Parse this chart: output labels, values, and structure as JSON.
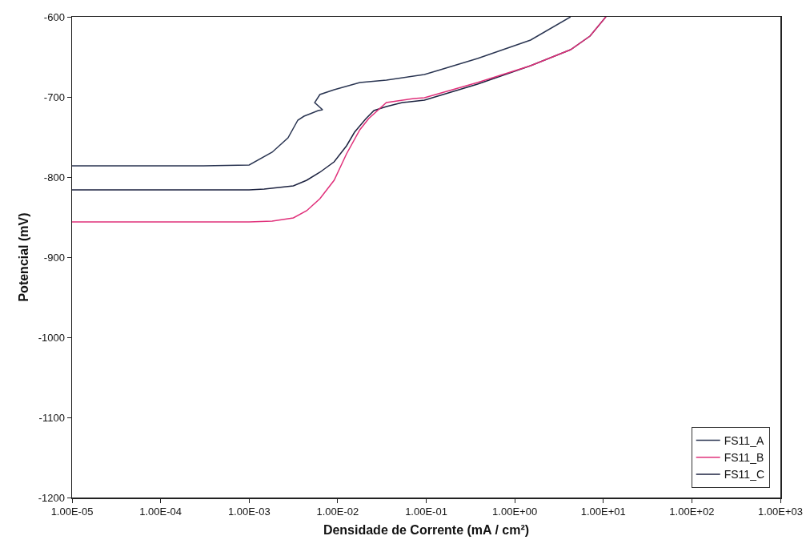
{
  "chart_data": {
    "type": "line",
    "xlabel": "Densidade de Corrente (mA / cm²)",
    "ylabel": "Potencial (mV)",
    "log": "x",
    "grid": false,
    "legend": "bottom right",
    "line_style": "solid",
    "marker": "none",
    "xlim": [
      1e-05,
      1000
    ],
    "xticks": [
      {
        "value": 1e-05,
        "label": "1.00E-05"
      },
      {
        "value": 0.0001,
        "label": "1.00E-04"
      },
      {
        "value": 0.001,
        "label": "1.00E-03"
      },
      {
        "value": 0.01,
        "label": "1.00E-02"
      },
      {
        "value": 0.1,
        "label": "1.00E-01"
      },
      {
        "value": 1,
        "label": "1.00E+00"
      },
      {
        "value": 10,
        "label": "1.00E+01"
      },
      {
        "value": 100,
        "label": "1.00E+02"
      },
      {
        "value": 1000,
        "label": "1.00E+03"
      }
    ],
    "ylim": [
      -1200,
      -600
    ],
    "yticks": [
      -1200,
      -1100,
      -1000,
      -900,
      -800,
      -700,
      -600
    ],
    "series": [
      {
        "name": "FS11_A",
        "color": "#2a3552",
        "x": [
          1e-05,
          0.0003,
          0.001,
          0.00182,
          0.00275,
          0.00355,
          0.00417,
          0.0049,
          0.00603,
          0.00676,
          0.0055,
          0.0063,
          0.00912,
          0.0178,
          0.0355,
          0.0955,
          0.145,
          0.38,
          1.51,
          4.27
        ],
        "values": [
          -786,
          -786,
          -785,
          -769,
          -751,
          -729,
          -724,
          -721,
          -717,
          -716,
          -707,
          -697,
          -691,
          -682,
          -679,
          -672,
          -666,
          -652,
          -629,
          -600
        ]
      },
      {
        "name": "FS11_B",
        "color": "#e0307a",
        "x": [
          1e-05,
          0.001,
          0.00182,
          0.00316,
          0.00447,
          0.0063,
          0.00912,
          0.0126,
          0.0178,
          0.0224,
          0.0355,
          0.0724,
          0.0955,
          0.38,
          1.51,
          4.27,
          7.08,
          10.7
        ],
        "values": [
          -856,
          -856,
          -855,
          -851,
          -842,
          -827,
          -804,
          -771,
          -741,
          -727,
          -707,
          -702,
          -701,
          -682,
          -661,
          -641,
          -624,
          -600
        ]
      },
      {
        "name": "FS11_C",
        "color": "#1c2240",
        "x": [
          1e-05,
          0.001,
          0.00148,
          0.00316,
          0.00447,
          0.0063,
          0.00912,
          0.0126,
          0.0155,
          0.0209,
          0.0257,
          0.0355,
          0.0537,
          0.0955,
          0.38,
          1.51,
          4.27,
          7.08,
          10.7
        ],
        "values": [
          -816,
          -816,
          -815,
          -811,
          -804,
          -794,
          -781,
          -761,
          -744,
          -727,
          -717,
          -712,
          -707,
          -704,
          -684,
          -661,
          -641,
          -624,
          -600
        ]
      }
    ]
  }
}
